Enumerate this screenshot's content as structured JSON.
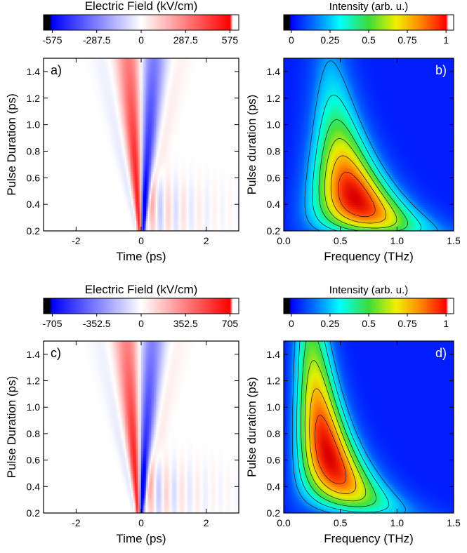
{
  "chart_data": [
    {
      "type": "heatmap",
      "panel_label": "a)",
      "colorbar": {
        "title": "Electric Field (kV/cm)",
        "colormap": "blue-white-red",
        "range": [
          -575,
          575
        ],
        "ticks": [
          "-575",
          "-287.5",
          "0",
          "287.5",
          "575"
        ],
        "tick_values": [
          -575,
          -287.5,
          0,
          287.5,
          575
        ]
      },
      "xlabel": "Time (ps)",
      "ylabel": "Pulse Duration (ps)",
      "xlim": [
        -3,
        3
      ],
      "ylim": [
        0.2,
        1.5
      ],
      "xticks": [
        -2,
        0,
        2
      ],
      "xtick_labels": [
        "-2",
        "0",
        "2"
      ],
      "yticks": [
        0.2,
        0.4,
        0.6,
        0.8,
        1.0,
        1.2,
        1.4
      ],
      "ytick_labels": [
        "0.2",
        "0.4",
        "0.6",
        "0.8",
        "1.0",
        "1.2",
        "1.4"
      ],
      "peak_positive": {
        "time_ps": -0.4,
        "duration_ps": 0.45,
        "field_kv_cm": 575
      },
      "peak_negative": {
        "time_ps": 0.4,
        "duration_ps": 0.4,
        "field_kv_cm": -575
      }
    },
    {
      "type": "heatmap",
      "panel_label": "b)",
      "colorbar": {
        "title": "Intensity (arb. u.)",
        "colormap": "jet",
        "range": [
          0,
          1
        ],
        "ticks": [
          "0",
          "0.25",
          "0.5",
          "0.75",
          "1"
        ],
        "tick_values": [
          0,
          0.25,
          0.5,
          0.75,
          1
        ]
      },
      "xlabel": "Frequency (THz)",
      "ylabel": "Pulse duration (ps)",
      "xlim": [
        0,
        1.5
      ],
      "ylim": [
        0.2,
        1.5
      ],
      "xticks": [
        0,
        0.5,
        1,
        1.5
      ],
      "xtick_labels": [
        "0.0",
        "0.5",
        "1.0",
        "1.5"
      ],
      "yticks": [
        0.2,
        0.4,
        0.6,
        0.8,
        1.0,
        1.2,
        1.4
      ],
      "ytick_labels": [
        "0.2",
        "0.4",
        "0.6",
        "0.8",
        "1.0",
        "1.2",
        "1.4"
      ],
      "contours": true,
      "peak": {
        "frequency_thz": 0.6,
        "duration_ps": 0.45,
        "intensity": 1
      }
    },
    {
      "type": "heatmap",
      "panel_label": "c)",
      "colorbar": {
        "title": "Electric Field (kV/cm)",
        "colormap": "blue-white-red",
        "range": [
          -705,
          705
        ],
        "ticks": [
          "-705",
          "-352.5",
          "0",
          "352.5",
          "705"
        ],
        "tick_values": [
          -705,
          -352.5,
          0,
          352.5,
          705
        ]
      },
      "xlabel": "Time (ps)",
      "ylabel": "Pulse Duration (ps)",
      "xlim": [
        -3,
        3
      ],
      "ylim": [
        0.2,
        1.5
      ],
      "xticks": [
        -2,
        0,
        2
      ],
      "xtick_labels": [
        "-2",
        "0",
        "2"
      ],
      "yticks": [
        0.2,
        0.4,
        0.6,
        0.8,
        1.0,
        1.2,
        1.4
      ],
      "ytick_labels": [
        "0.2",
        "0.4",
        "0.6",
        "0.8",
        "1.0",
        "1.2",
        "1.4"
      ],
      "peak_positive": {
        "time_ps": -0.5,
        "duration_ps": 0.55,
        "field_kv_cm": 705
      },
      "peak_negative": {
        "time_ps": 0.5,
        "duration_ps": 0.55,
        "field_kv_cm": -705
      }
    },
    {
      "type": "heatmap",
      "panel_label": "d)",
      "colorbar": {
        "title": "Intensity (arb. u.)",
        "colormap": "jet",
        "range": [
          0,
          1
        ],
        "ticks": [
          "0",
          "0.25",
          "0.5",
          "0.75",
          "1"
        ],
        "tick_values": [
          0,
          0.25,
          0.5,
          0.75,
          1
        ]
      },
      "xlabel": "Frequency (THz)",
      "ylabel": "Pulse duration (ps)",
      "xlim": [
        0,
        1.5
      ],
      "ylim": [
        0.2,
        1.5
      ],
      "xticks": [
        0,
        0.5,
        1,
        1.5
      ],
      "xtick_labels": [
        "0.0",
        "0.5",
        "1.0",
        "1.5"
      ],
      "yticks": [
        0.2,
        0.4,
        0.6,
        0.8,
        1.0,
        1.2,
        1.4
      ],
      "ytick_labels": [
        "0.2",
        "0.4",
        "0.6",
        "0.8",
        "1.0",
        "1.2",
        "1.4"
      ],
      "contours": true,
      "peak": {
        "frequency_thz": 0.38,
        "duration_ps": 0.65,
        "intensity": 1
      }
    }
  ]
}
